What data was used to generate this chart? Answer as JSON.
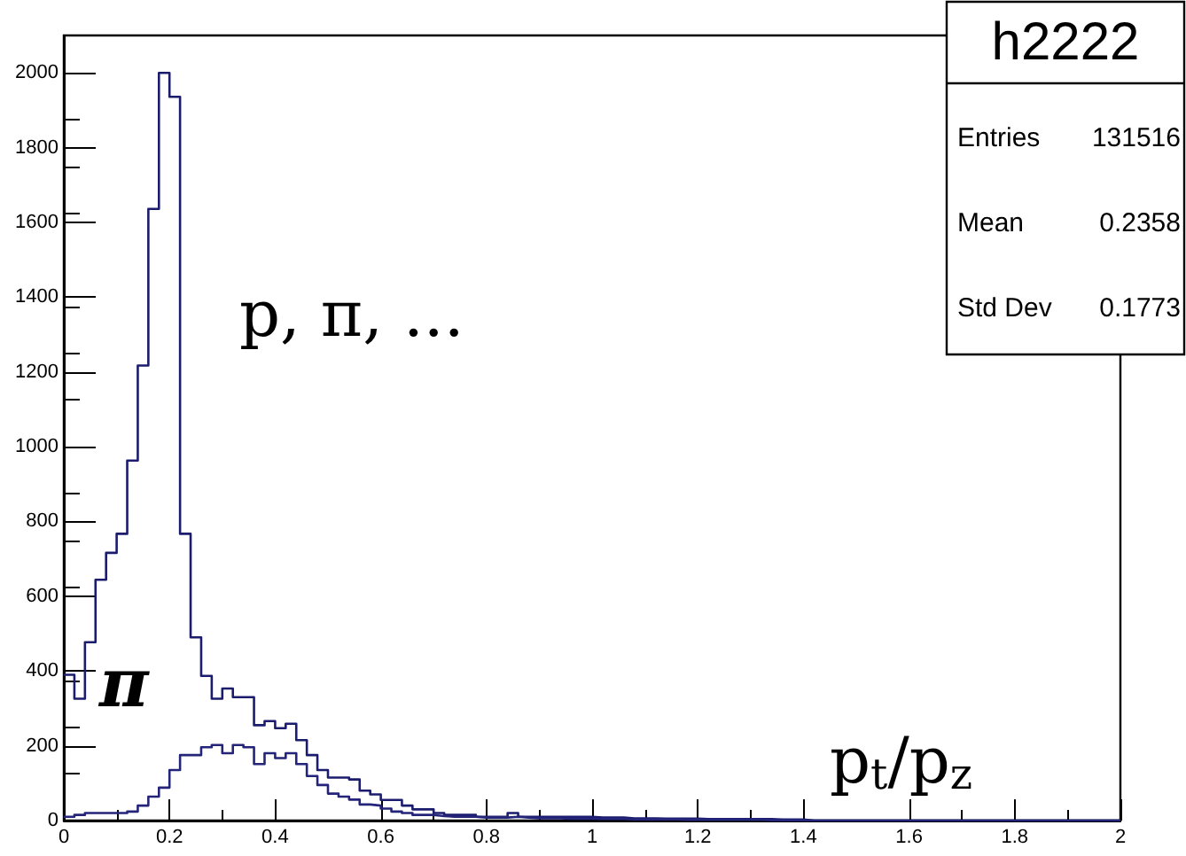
{
  "chart_data": {
    "type": "histogram",
    "title": "h2222",
    "xlabel": "p$_{t}$/p$_{z}$",
    "annotations": [
      "p, π, ...",
      "π",
      "Entries",
      "131516",
      "Mean",
      "0.2358",
      "Std Dev",
      "0.1773"
    ],
    "bins": [
      0,
      0.02,
      0.04,
      0.06,
      0.08,
      0.1,
      0.12,
      0.14,
      0.16,
      0.18,
      0.2,
      0.22,
      0.24,
      0.26,
      0.28,
      0.3,
      0.32,
      0.34,
      0.36,
      0.38,
      0.4,
      0.42,
      0.44,
      0.46,
      0.48,
      0.5,
      0.52,
      0.54,
      0.56,
      0.58,
      0.6,
      0.62,
      0.64,
      0.66,
      0.68,
      0.7,
      0.72,
      0.74,
      0.76,
      0.78,
      0.8,
      0.82,
      0.84,
      0.86,
      0.88,
      0.9,
      0.92,
      0.94,
      0.96,
      0.98,
      1,
      1.02,
      1.04,
      1.06,
      1.08,
      1.1,
      1.12,
      1.14,
      1.16,
      1.18,
      1.2,
      1.22,
      1.24,
      1.26,
      1.28,
      1.3,
      1.32,
      1.34,
      1.36,
      1.38,
      1.4,
      1.42,
      1.44,
      1.46,
      1.48,
      1.5,
      1.52,
      1.54,
      1.56,
      1.58,
      1.6,
      1.62,
      1.64,
      1.66,
      1.68,
      1.7,
      1.72,
      1.74,
      1.76,
      1.78,
      1.8,
      1.82,
      1.84,
      1.86,
      1.88,
      1.9,
      1.92,
      1.94,
      1.96,
      1.98,
      2
    ],
    "series": [
      {
        "color": "#1c1c6e",
        "values": [
          390,
          326,
          477,
          644,
          716,
          767,
          963,
          1217,
          1636,
          2000,
          1936,
          767,
          490,
          387,
          326,
          353,
          330,
          330,
          255,
          266,
          247,
          259,
          215,
          175,
          135,
          115,
          115,
          110,
          80,
          70,
          55,
          55,
          40,
          30,
          30,
          20,
          15,
          15,
          15,
          10,
          10,
          10,
          20,
          10,
          10,
          10,
          10,
          10,
          10,
          10,
          8,
          8,
          8,
          6,
          6,
          6,
          5,
          5,
          5,
          5,
          4,
          4,
          4,
          4,
          4,
          4,
          4,
          3,
          3,
          3,
          0,
          0,
          0,
          0,
          0,
          0,
          0,
          0,
          0,
          0,
          0,
          0,
          0,
          0,
          0,
          0,
          0,
          0,
          0,
          0,
          0,
          0,
          0,
          0,
          0,
          0,
          0,
          0,
          0,
          0
        ]
      },
      {
        "color": "#24247a",
        "values": [
          10,
          15,
          20,
          20,
          20,
          20,
          24,
          40,
          64,
          88,
          135,
          175,
          175,
          196,
          202,
          180,
          202,
          196,
          151,
          180,
          167,
          180,
          151,
          119,
          95,
          72,
          64,
          56,
          43,
          40,
          32,
          24,
          20,
          15,
          15,
          12,
          10,
          10,
          10,
          8,
          8,
          8,
          10,
          8,
          6,
          6,
          6,
          5,
          5,
          5,
          4,
          4,
          4,
          3,
          3,
          3,
          3,
          3,
          2,
          2,
          2,
          2,
          2,
          2,
          2,
          2,
          1,
          1,
          1,
          1,
          0,
          0,
          0,
          0,
          0,
          0,
          0,
          0,
          0,
          0,
          0,
          0,
          0,
          0,
          0,
          0,
          0,
          0,
          0,
          0,
          0,
          0,
          0,
          0,
          0,
          0,
          0,
          0,
          0,
          0
        ]
      }
    ],
    "xlim": [
      0,
      2
    ],
    "xticks": [
      0,
      0.2,
      0.4,
      0.6,
      0.8,
      1,
      1.2,
      1.4,
      1.6,
      1.8,
      2
    ],
    "ylim": [
      0,
      2100
    ],
    "yticks": [
      0,
      200,
      400,
      600,
      800,
      1000,
      1200,
      1400,
      1600,
      1800,
      2000
    ],
    "grid": false
  }
}
